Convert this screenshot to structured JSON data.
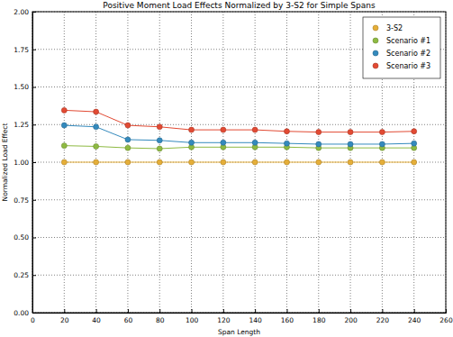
{
  "chart_data": {
    "type": "line",
    "title": "Positive Moment Load Effects Normalized by 3-S2 for Simple Spans",
    "x_label": "Span Length",
    "y_label": "Normalized Load Effect",
    "x": [
      20,
      40,
      60,
      80,
      100,
      120,
      140,
      160,
      180,
      200,
      220,
      240
    ],
    "series": [
      {
        "name": "3-S2",
        "color": "#e5ae38",
        "marker": "circle",
        "line_style": "solid",
        "values": [
          1.0,
          1.0,
          1.0,
          1.0,
          1.0,
          1.0,
          1.0,
          1.0,
          1.0,
          1.0,
          1.0,
          1.0
        ]
      },
      {
        "name": "Scenario #1",
        "color": "#8eba42",
        "marker": "circle",
        "line_style": "solid",
        "values": [
          1.11,
          1.105,
          1.095,
          1.09,
          1.1,
          1.1,
          1.1,
          1.1,
          1.095,
          1.095,
          1.095,
          1.095
        ]
      },
      {
        "name": "Scenario #2",
        "color": "#348abd",
        "marker": "circle",
        "line_style": "solid",
        "values": [
          1.245,
          1.235,
          1.15,
          1.145,
          1.13,
          1.13,
          1.13,
          1.125,
          1.12,
          1.12,
          1.12,
          1.125
        ]
      },
      {
        "name": "Scenario #3",
        "color": "#e24a33",
        "marker": "circle",
        "line_style": "solid",
        "values": [
          1.345,
          1.335,
          1.245,
          1.235,
          1.215,
          1.215,
          1.215,
          1.205,
          1.2,
          1.2,
          1.2,
          1.205
        ]
      }
    ],
    "xlim": [
      0,
      260
    ],
    "xticks": [
      0,
      20,
      40,
      60,
      80,
      100,
      120,
      140,
      160,
      180,
      200,
      220,
      240,
      260
    ],
    "ylim": [
      0,
      2
    ],
    "yticks": [
      {
        "value": 0,
        "label": "0.00"
      },
      {
        "value": 0.25,
        "label": "0.25"
      },
      {
        "value": 0.5,
        "label": "0.50"
      },
      {
        "value": 0.75,
        "label": "0.75"
      },
      {
        "value": 1,
        "label": "1.00"
      },
      {
        "value": 1.25,
        "label": "1.25"
      },
      {
        "value": 1.5,
        "label": "1.50"
      },
      {
        "value": 1.75,
        "label": "1.75"
      },
      {
        "value": 2,
        "label": "2.00"
      }
    ],
    "grid": true,
    "legend": "upper right"
  }
}
